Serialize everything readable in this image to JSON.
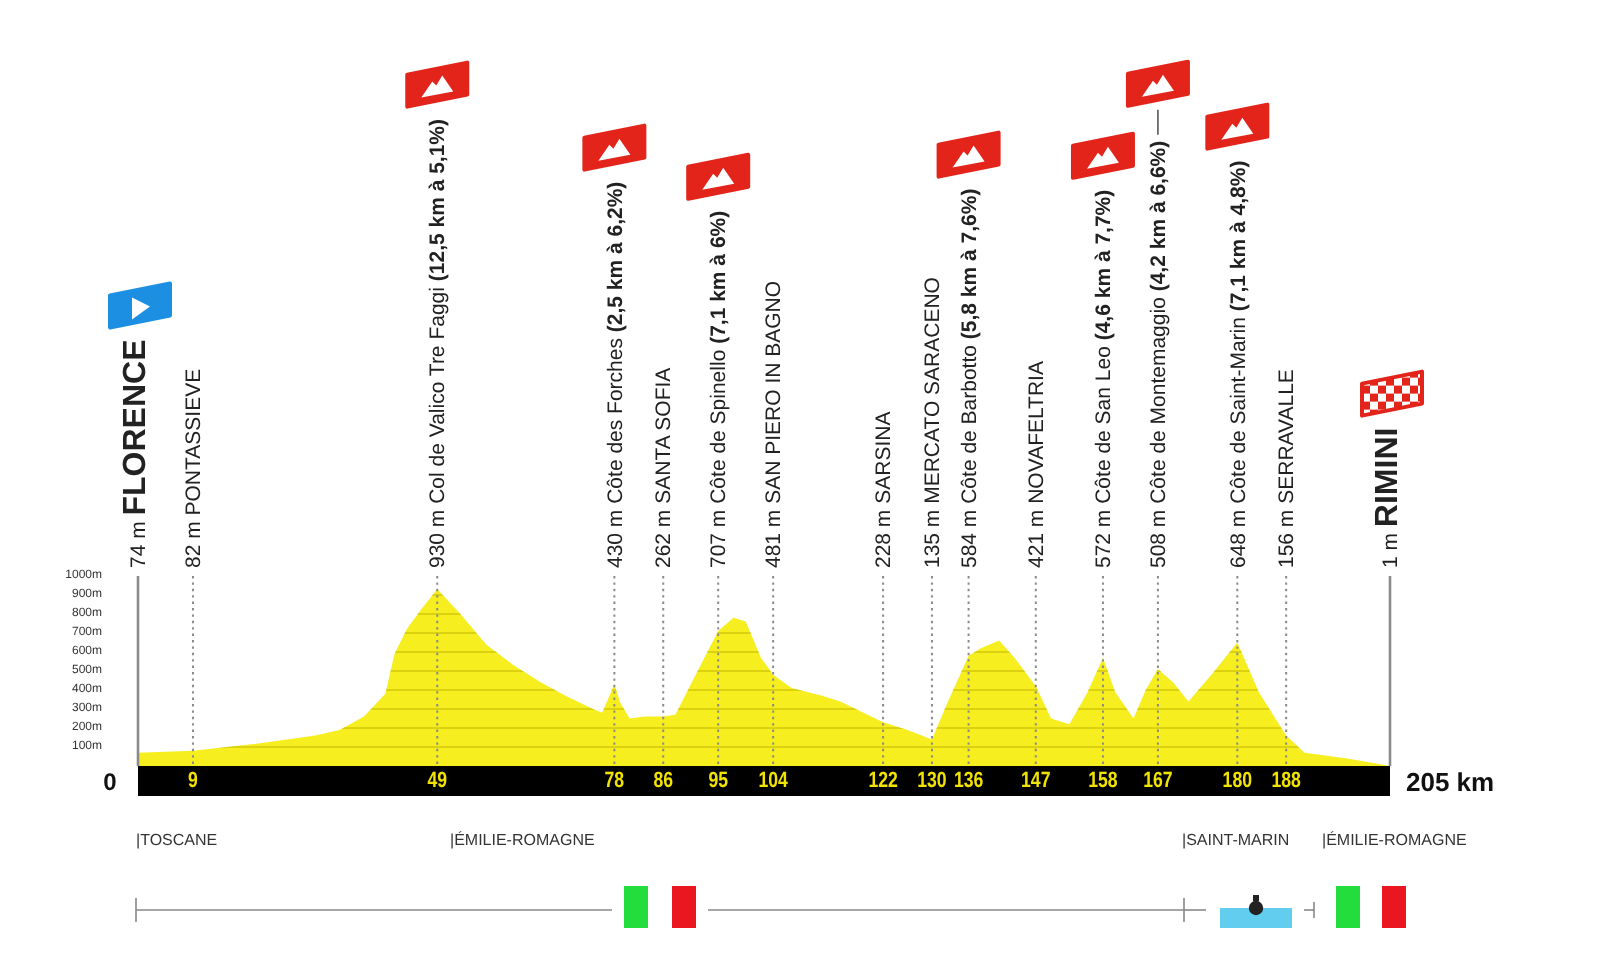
{
  "chart_data": {
    "type": "area",
    "x": [
      0,
      9,
      20,
      29,
      33,
      37,
      40.5,
      42,
      44,
      46.5,
      49,
      52.5,
      57,
      61.5,
      66,
      70,
      74.5,
      76,
      78,
      79,
      80.5,
      83,
      86,
      88,
      91,
      95,
      97.5,
      99.5,
      102,
      104,
      107,
      112,
      115,
      122,
      126,
      130,
      132.5,
      136,
      138,
      141,
      143.5,
      147,
      149.5,
      152.5,
      155.5,
      158,
      160,
      163,
      165,
      167,
      169.5,
      172,
      176,
      180,
      183.5,
      188,
      191,
      198,
      205
    ],
    "series": [
      {
        "color": "#f6ee1f",
        "values": [
          70,
          80,
          120,
          160,
          190,
          260,
          380,
          590,
          720,
          830,
          930,
          810,
          640,
          530,
          440,
          370,
          300,
          280,
          430,
          330,
          250,
          260,
          260,
          270,
          460,
          710,
          780,
          760,
          570,
          480,
          410,
          370,
          340,
          230,
          190,
          140,
          330,
          580,
          620,
          660,
          570,
          420,
          250,
          220,
          390,
          570,
          390,
          250,
          400,
          510,
          440,
          340,
          490,
          650,
          390,
          160,
          70,
          40,
          0
        ]
      }
    ],
    "xlim": [
      0,
      205
    ],
    "xticks": [
      9,
      49,
      78,
      86,
      95,
      104,
      122,
      130,
      136,
      147,
      158,
      167,
      180,
      188
    ],
    "ylim": [
      0,
      1000
    ],
    "yticks": [
      {
        "value": 100,
        "label": "100m"
      },
      {
        "value": 200,
        "label": "200m"
      },
      {
        "value": 300,
        "label": "300m"
      },
      {
        "value": 400,
        "label": "400m"
      },
      {
        "value": 500,
        "label": "500m"
      },
      {
        "value": 600,
        "label": "600m"
      },
      {
        "value": 700,
        "label": "700m"
      },
      {
        "value": 800,
        "label": "800m"
      },
      {
        "value": 900,
        "label": "900m"
      },
      {
        "value": 1000,
        "label": "1000m"
      }
    ],
    "grid": "y",
    "ref_lines": [
      {
        "axis": "x",
        "value": 0,
        "label": "74 m FLORENCE",
        "line_style": "solid",
        "color": "#8a8a8a"
      },
      {
        "axis": "x",
        "value": 9,
        "label": "82 m PONTASSIEVE",
        "line_style": "dotted",
        "color": "#8a8a8a"
      },
      {
        "axis": "x",
        "value": 49,
        "label": "930 m Col de Valico Tre Faggi (12,5 km à 5,1%)",
        "line_style": "dotted",
        "color": "#8a8a8a"
      },
      {
        "axis": "x",
        "value": 78,
        "label": "430 m Côte des Forches (2,5 km à 6,2%)",
        "line_style": "dotted",
        "color": "#8a8a8a"
      },
      {
        "axis": "x",
        "value": 86,
        "label": "262 m SANTA SOFIA",
        "line_style": "dotted",
        "color": "#8a8a8a"
      },
      {
        "axis": "x",
        "value": 95,
        "label": "707 m Côte de Spinello (7,1 km à 6%)",
        "line_style": "dotted",
        "color": "#8a8a8a"
      },
      {
        "axis": "x",
        "value": 104,
        "label": "481 m SAN PIERO IN BAGNO",
        "line_style": "dotted",
        "color": "#8a8a8a"
      },
      {
        "axis": "x",
        "value": 122,
        "label": "228 m SARSINA",
        "line_style": "dotted",
        "color": "#8a8a8a"
      },
      {
        "axis": "x",
        "value": 130,
        "label": "135 m MERCATO SARACENO",
        "line_style": "dotted",
        "color": "#8a8a8a"
      },
      {
        "axis": "x",
        "value": 136,
        "label": "584 m Côte de Barbotto (5,8 km à 7,6%)",
        "line_style": "dotted",
        "color": "#8a8a8a"
      },
      {
        "axis": "x",
        "value": 147,
        "label": "421 m NOVAFELTRIA",
        "line_style": "dotted",
        "color": "#8a8a8a"
      },
      {
        "axis": "x",
        "value": 158,
        "label": "572 m Côte de San Leo (4,6 km à 7,7%)",
        "line_style": "dotted",
        "color": "#8a8a8a"
      },
      {
        "axis": "x",
        "value": 167,
        "label": "508 m Côte de Montemaggio (4,2 km à 6,6%)",
        "line_style": "dotted",
        "color": "#8a8a8a"
      },
      {
        "axis": "x",
        "value": 180,
        "label": "648 m Côte de Saint-Marin (7,1 km à 4,8%)",
        "line_style": "dotted",
        "color": "#8a8a8a"
      },
      {
        "axis": "x",
        "value": 188,
        "label": "156 m SERRAVALLE",
        "line_style": "dotted",
        "color": "#8a8a8a"
      },
      {
        "axis": "x",
        "value": 205,
        "label": "1 m RIMINI",
        "line_style": "solid",
        "color": "#8a8a8a"
      }
    ],
    "annotations": [
      "0",
      "205 km",
      "|TOSCANE",
      "|ÉMILIE-ROMAGNE",
      "|SAINT-MARIN",
      "|ÉMILIE-ROMAGNE"
    ]
  }
}
